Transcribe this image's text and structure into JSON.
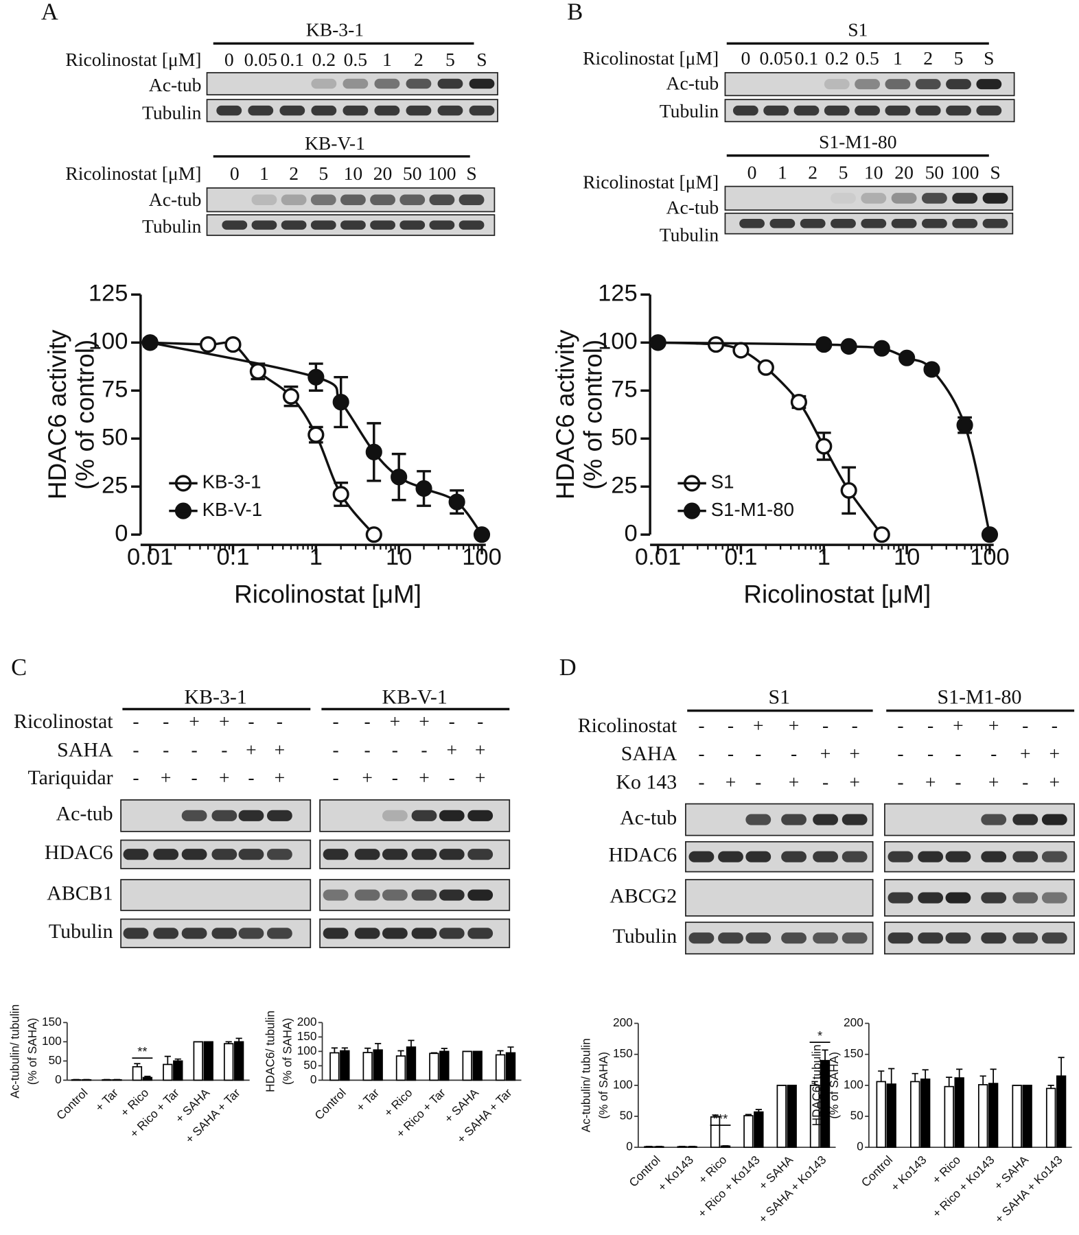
{
  "panel_labels": [
    "A",
    "B",
    "C",
    "D"
  ],
  "dose_blots": [
    {
      "title": "KB-3-1",
      "row_label": "Ricolinostat [μM]",
      "lanes": [
        "0",
        "0.05",
        "0.1",
        "0.2",
        "0.5",
        "1",
        "2",
        "5",
        "S"
      ],
      "rows": [
        "Ac-tub",
        "Tubulin"
      ]
    },
    {
      "title": "KB-V-1",
      "row_label": "Ricolinostat [μM]",
      "lanes": [
        "0",
        "1",
        "2",
        "5",
        "10",
        "20",
        "50",
        "100",
        "S"
      ],
      "rows": [
        "Ac-tub",
        "Tubulin"
      ]
    },
    {
      "title": "S1",
      "row_label": "Ricolinostat [μM]",
      "lanes": [
        "0",
        "0.05",
        "0.1",
        "0.2",
        "0.5",
        "1",
        "2",
        "5",
        "S"
      ],
      "rows": [
        "Ac-tub",
        "Tubulin"
      ]
    },
    {
      "title": "S1-M1-80",
      "row_label": "Ricolinostat [μM]",
      "lanes": [
        "0",
        "1",
        "2",
        "5",
        "10",
        "20",
        "50",
        "100",
        "S"
      ],
      "rows": [
        "Ac-tub",
        "Tubulin"
      ]
    }
  ],
  "treatment_blots": [
    {
      "groups": [
        "KB-3-1",
        "KB-V-1"
      ],
      "treatments": [
        {
          "name": "Ricolinostat",
          "signs": [
            "-",
            "-",
            "+",
            "+",
            "-",
            "-"
          ]
        },
        {
          "name": "SAHA",
          "signs": [
            "-",
            "-",
            "-",
            "-",
            "+",
            "+"
          ]
        },
        {
          "name": "Tariquidar",
          "signs": [
            "-",
            "+",
            "-",
            "+",
            "-",
            "+"
          ]
        }
      ],
      "rows": [
        "Ac-tub",
        "HDAC6",
        "ABCB1",
        "Tubulin"
      ]
    },
    {
      "groups": [
        "S1",
        "S1-M1-80"
      ],
      "treatments": [
        {
          "name": "Ricolinostat",
          "signs": [
            "-",
            "-",
            "+",
            "+",
            "-",
            "-"
          ]
        },
        {
          "name": "SAHA",
          "signs": [
            "-",
            "-",
            "-",
            "-",
            "+",
            "+"
          ]
        },
        {
          "name": "Ko 143",
          "signs": [
            "-",
            "+",
            "-",
            "+",
            "-",
            "+"
          ]
        }
      ],
      "rows": [
        "Ac-tub",
        "HDAC6",
        "ABCG2",
        "Tubulin"
      ]
    }
  ],
  "chart_data": [
    {
      "type": "scatter",
      "x_label": "Ricolinostat [μM]",
      "y_label": [
        "HDAC6 activity",
        "(% of control)"
      ],
      "xscale": "log",
      "xlim": [
        0.01,
        100
      ],
      "xticks": [
        0.01,
        0.1,
        1,
        10,
        100
      ],
      "ylim": [
        0,
        125
      ],
      "yticks": [
        0,
        25,
        50,
        75,
        100,
        125
      ],
      "legend": "lower left",
      "series": [
        {
          "name": "KB-3-1",
          "marker": "open",
          "color": "#111111",
          "x": [
            0.01,
            0.05,
            0.1,
            0.2,
            0.5,
            1,
            2,
            5
          ],
          "values": [
            100,
            99,
            99,
            85,
            72,
            52,
            21,
            0
          ],
          "errors": [
            1,
            1,
            1,
            4,
            5,
            4,
            6,
            1
          ]
        },
        {
          "name": "KB-V-1",
          "marker": "filled",
          "color": "#111111",
          "x": [
            0.01,
            1,
            2,
            5,
            10,
            20,
            50,
            100
          ],
          "values": [
            100,
            82,
            69,
            43,
            30,
            24,
            17,
            0
          ],
          "errors": [
            2,
            7,
            13,
            15,
            12,
            9,
            6,
            0
          ]
        }
      ]
    },
    {
      "type": "scatter",
      "x_label": "Ricolinostat [μM]",
      "y_label": [
        "HDAC6 activity",
        "(% of control)"
      ],
      "xscale": "log",
      "xlim": [
        0.01,
        100
      ],
      "xticks": [
        0.01,
        0.1,
        1,
        10,
        100
      ],
      "ylim": [
        0,
        125
      ],
      "yticks": [
        0,
        25,
        50,
        75,
        100,
        125
      ],
      "legend": "lower left",
      "series": [
        {
          "name": "S1",
          "marker": "open",
          "color": "#111111",
          "x": [
            0.01,
            0.05,
            0.1,
            0.2,
            0.5,
            1,
            2,
            5
          ],
          "values": [
            100,
            99,
            96,
            87,
            69,
            46,
            23,
            0
          ],
          "errors": [
            1,
            1,
            1,
            2,
            3,
            7,
            12,
            0
          ]
        },
        {
          "name": "S1-M1-80",
          "marker": "filled",
          "color": "#111111",
          "x": [
            0.01,
            1,
            2,
            5,
            10,
            20,
            50,
            100
          ],
          "values": [
            100,
            99,
            98,
            97,
            92,
            86,
            57,
            0
          ],
          "errors": [
            1,
            1,
            1,
            1,
            1,
            1,
            4,
            0
          ]
        }
      ]
    },
    {
      "type": "bar",
      "y_label": [
        "Ac-tubulin/ tubulin",
        "(% of SAHA)"
      ],
      "categories": [
        "Control",
        "+ Tar",
        "+ Rico",
        "+ Rico + Tar",
        "+ SAHA",
        "+ SAHA + Tar"
      ],
      "ylim": [
        0,
        150
      ],
      "yticks": [
        0,
        50,
        100,
        150
      ],
      "annotations": [
        "**"
      ],
      "series": [
        {
          "color": "#ffffff",
          "values": [
            1,
            1,
            35,
            41,
            100,
            95
          ],
          "errors": [
            0.5,
            0.5,
            8,
            21,
            0,
            5
          ]
        },
        {
          "color": "#000000",
          "values": [
            1,
            1,
            7,
            50,
            100,
            100
          ],
          "errors": [
            0.5,
            0.5,
            3,
            5,
            0,
            9
          ]
        }
      ]
    },
    {
      "type": "bar",
      "y_label": [
        "HDAC6/ tubulin",
        "(% of SAHA)"
      ],
      "categories": [
        "Control",
        "+ Tar",
        "+ Rico",
        "+ Rico + Tar",
        "+ SAHA",
        "+ SAHA + Tar"
      ],
      "ylim": [
        0,
        200
      ],
      "yticks": [
        0,
        50,
        100,
        150,
        200
      ],
      "annotations": [],
      "series": [
        {
          "color": "#ffffff",
          "values": [
            95,
            96,
            84,
            93,
            100,
            88
          ],
          "errors": [
            17,
            15,
            18,
            2,
            0,
            14
          ]
        },
        {
          "color": "#000000",
          "values": [
            102,
            105,
            115,
            100,
            100,
            95
          ],
          "errors": [
            10,
            22,
            23,
            10,
            0,
            20
          ]
        }
      ]
    },
    {
      "type": "bar",
      "y_label": [
        "Ac-tubulin/ tubulin",
        "(% of SAHA)"
      ],
      "categories": [
        "Control",
        "+ Ko143",
        "+ Rico",
        "+ Rico + Ko143",
        "+ SAHA",
        "+ SAHA + Ko143"
      ],
      "ylim": [
        0,
        200
      ],
      "yticks": [
        0,
        50,
        100,
        150,
        200
      ],
      "annotations": [
        "***",
        "*"
      ],
      "series": [
        {
          "color": "#ffffff",
          "values": [
            1,
            1,
            49,
            51,
            100,
            100
          ],
          "errors": [
            0.5,
            0.5,
            3,
            2,
            0,
            6
          ]
        },
        {
          "color": "#000000",
          "values": [
            1,
            1,
            2,
            57,
            100,
            140
          ],
          "errors": [
            0.5,
            0.5,
            0.5,
            4,
            0,
            17
          ]
        }
      ]
    },
    {
      "type": "bar",
      "y_label": [
        "HDAC6/ tubulin",
        "(% of SAHA)"
      ],
      "categories": [
        "Control",
        "+ Ko143",
        "+ Rico",
        "+ Rico + Ko143",
        "+ SAHA",
        "+ SAHA + Ko143"
      ],
      "ylim": [
        0,
        200
      ],
      "yticks": [
        0,
        50,
        100,
        150,
        200
      ],
      "annotations": [],
      "series": [
        {
          "color": "#ffffff",
          "values": [
            106,
            106,
            98,
            101,
            100,
            95
          ],
          "errors": [
            17,
            13,
            15,
            14,
            0,
            5
          ]
        },
        {
          "color": "#000000",
          "values": [
            102,
            110,
            112,
            103,
            100,
            115
          ],
          "errors": [
            25,
            15,
            14,
            23,
            0,
            30
          ]
        }
      ]
    }
  ]
}
